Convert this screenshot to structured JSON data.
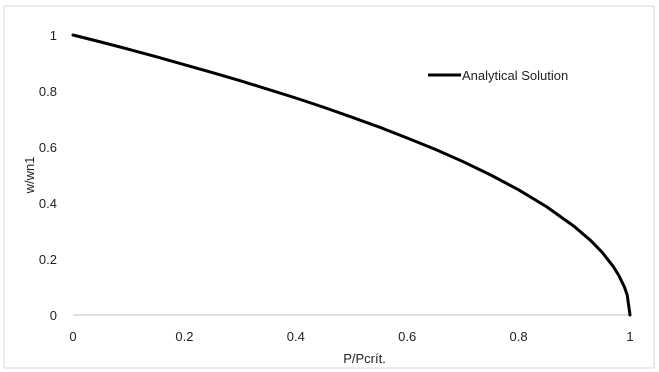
{
  "chart_data": {
    "type": "line",
    "title": "",
    "xlabel": "P/Pcrít.",
    "ylabel": "w/wn1",
    "xlim": [
      0,
      1
    ],
    "ylim": [
      0,
      1
    ],
    "x_ticks": [
      "0",
      "0.2",
      "0.4",
      "0.6",
      "0.8",
      "1"
    ],
    "y_ticks": [
      "0",
      "0.2",
      "0.4",
      "0.6",
      "0.8",
      "1"
    ],
    "grid": false,
    "legend_position": "top-right",
    "series": [
      {
        "name": "Analytical Solution",
        "color": "#000000",
        "x": [
          0,
          0.05,
          0.1,
          0.15,
          0.2,
          0.25,
          0.3,
          0.35,
          0.4,
          0.45,
          0.5,
          0.55,
          0.6,
          0.65,
          0.7,
          0.75,
          0.8,
          0.85,
          0.9,
          0.93,
          0.95,
          0.97,
          0.98,
          0.99,
          0.995,
          1.0
        ],
        "y": [
          1.0,
          0.975,
          0.949,
          0.922,
          0.894,
          0.866,
          0.837,
          0.806,
          0.775,
          0.742,
          0.707,
          0.671,
          0.632,
          0.592,
          0.548,
          0.5,
          0.447,
          0.387,
          0.316,
          0.265,
          0.224,
          0.173,
          0.141,
          0.1,
          0.071,
          0.0
        ]
      }
    ]
  }
}
